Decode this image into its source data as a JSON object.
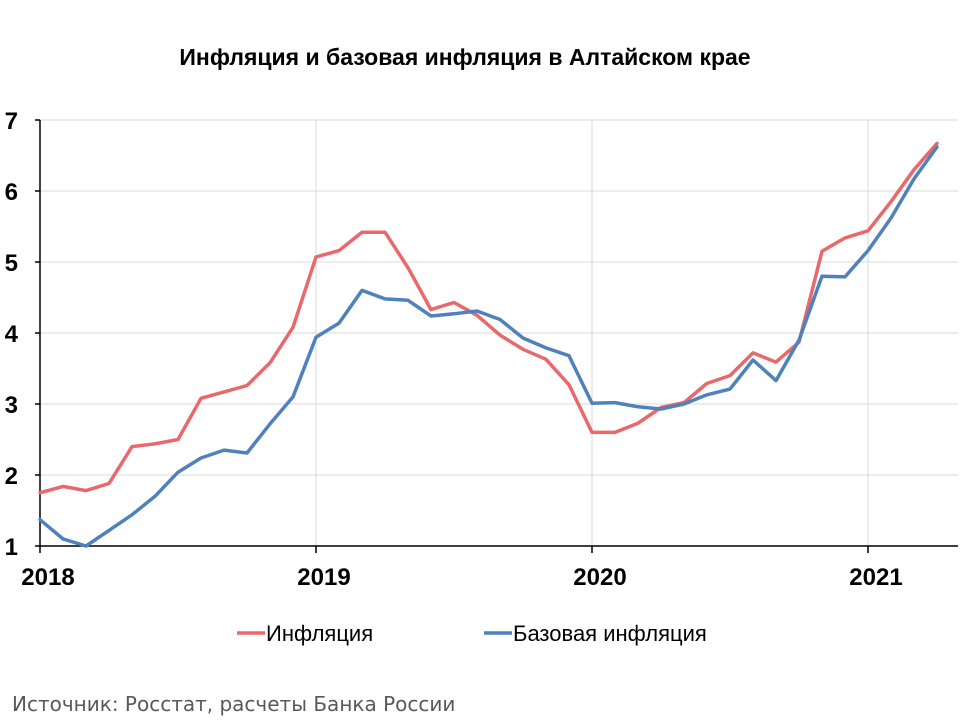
{
  "chart_data": {
    "type": "line",
    "title": "Инфляция и базовая инфляция в Алтайском крае",
    "xlabel": "",
    "ylabel": "",
    "x_tick_labels": [
      "2018",
      "2019",
      "2020",
      "2021"
    ],
    "x": [
      "2018-01",
      "2018-02",
      "2018-03",
      "2018-04",
      "2018-05",
      "2018-06",
      "2018-07",
      "2018-08",
      "2018-09",
      "2018-10",
      "2018-11",
      "2018-12",
      "2019-01",
      "2019-02",
      "2019-03",
      "2019-04",
      "2019-05",
      "2019-06",
      "2019-07",
      "2019-08",
      "2019-09",
      "2019-10",
      "2019-11",
      "2019-12",
      "2020-01",
      "2020-02",
      "2020-03",
      "2020-04",
      "2020-05",
      "2020-06",
      "2020-07",
      "2020-08",
      "2020-09",
      "2020-10",
      "2020-11",
      "2020-12",
      "2021-01",
      "2021-02",
      "2021-03",
      "2021-04"
    ],
    "ylim": [
      1,
      7
    ],
    "yticks": [
      1,
      2,
      3,
      4,
      5,
      6,
      7
    ],
    "grid": true,
    "legend_position": "bottom",
    "series": [
      {
        "name": "Инфляция",
        "color": "#E8686B",
        "values": [
          1.75,
          1.84,
          1.78,
          1.88,
          2.4,
          2.44,
          2.5,
          3.08,
          3.17,
          3.26,
          3.58,
          4.08,
          5.07,
          5.16,
          5.42,
          5.42,
          4.92,
          4.33,
          4.43,
          4.25,
          3.97,
          3.77,
          3.63,
          3.27,
          2.6,
          2.6,
          2.73,
          2.95,
          3.02,
          3.29,
          3.4,
          3.72,
          3.59,
          3.87,
          5.15,
          5.34,
          5.44,
          5.85,
          6.3,
          6.67
        ]
      },
      {
        "name": "Базовая инфляция",
        "color": "#4F81BD",
        "values": [
          1.37,
          1.1,
          1.0,
          1.22,
          1.44,
          1.7,
          2.04,
          2.24,
          2.35,
          2.31,
          2.72,
          3.1,
          3.94,
          4.14,
          4.6,
          4.48,
          4.46,
          4.24,
          4.27,
          4.31,
          4.19,
          3.93,
          3.79,
          3.68,
          3.01,
          3.02,
          2.96,
          2.93,
          3.0,
          3.13,
          3.21,
          3.62,
          3.33,
          3.9,
          4.8,
          4.79,
          5.16,
          5.62,
          6.17,
          6.62
        ]
      }
    ]
  },
  "source": "Источник: Росстат, расчеты Банка России"
}
